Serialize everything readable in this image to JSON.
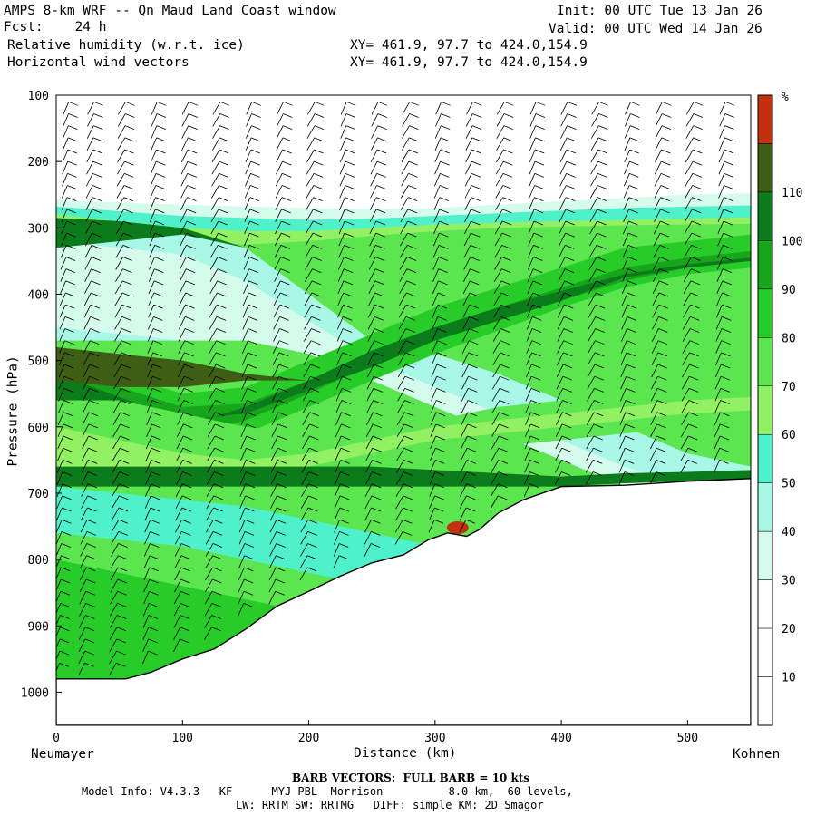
{
  "header": {
    "title": "AMPS 8-km WRF -- Qn Maud Land Coast window",
    "fcst_label": "Fcst:",
    "fcst_value": "24 h",
    "field1": "Relative humidity (w.r.t. ice)",
    "field2": "Horizontal wind vectors",
    "init": "Init: 00 UTC Tue 13 Jan 26",
    "valid": "Valid: 00 UTC Wed 14 Jan 26",
    "xy1": "XY= 461.9, 97.7 to 424.0,154.9",
    "xy2": "XY= 461.9, 97.7 to 424.0,154.9"
  },
  "footer": {
    "barb_note": "BARB VECTORS:  FULL BARB = 10 kts",
    "model_info": "Model Info: V4.3.3   KF      MYJ PBL  Morrison          8.0 km,  60 levels,",
    "model_info2": "LW: RRTM SW: RRTMG   DIFF: simple KM: 2D Smagor"
  },
  "colors": {
    "c10": "#ffffff",
    "c30": "#d4fbec",
    "c40": "#a9f7e6",
    "c50": "#4ff1ca",
    "c60": "#92f063",
    "c70": "#5be54f",
    "c80": "#28cc28",
    "c90": "#17a51b",
    "c100": "#0b7b1b",
    "c110": "#3f5e15",
    "c120": "#c23010"
  },
  "chart_data": {
    "type": "cross-section (filled contour + wind barbs)",
    "title": "Relative humidity (w.r.t. ice) and horizontal wind vectors",
    "xlabel": "Distance (km)",
    "ylabel": "Pressure (hPa)",
    "xlim": [
      0,
      550
    ],
    "ylim": [
      1050,
      100
    ],
    "x_ticks": [
      "0",
      "100",
      "200",
      "300",
      "400",
      "500"
    ],
    "x_tick_values": [
      0,
      100,
      200,
      300,
      400,
      500
    ],
    "y_ticks": [
      "100",
      "200",
      "300",
      "400",
      "500",
      "600",
      "700",
      "800",
      "900",
      "1000"
    ],
    "y_tick_values": [
      100,
      200,
      300,
      400,
      500,
      600,
      700,
      800,
      900,
      1000
    ],
    "x_endpoints": {
      "left": "Neumayer",
      "right": "Kohnen"
    },
    "colorbar_unit": "%",
    "colorbar_levels": [
      "10",
      "20",
      "30",
      "40",
      "50",
      "60",
      "70",
      "80",
      "90",
      "100",
      "110"
    ],
    "colorbar_colors": [
      "#ffffff",
      "#ffffff",
      "#ffffff",
      "#d4fbec",
      "#a9f7e6",
      "#4ff1ca",
      "#92f063",
      "#5be54f",
      "#28cc28",
      "#17a51b",
      "#0b7b1b",
      "#3f5e15",
      "#c23010"
    ],
    "terrain_surface_hpa": [
      [
        0,
        980
      ],
      [
        55,
        980
      ],
      [
        75,
        970
      ],
      [
        100,
        950
      ],
      [
        125,
        935
      ],
      [
        150,
        905
      ],
      [
        175,
        870
      ],
      [
        200,
        848
      ],
      [
        225,
        825
      ],
      [
        250,
        805
      ],
      [
        275,
        793
      ],
      [
        295,
        770
      ],
      [
        310,
        760
      ],
      [
        325,
        765
      ],
      [
        335,
        755
      ],
      [
        350,
        730
      ],
      [
        370,
        710
      ],
      [
        400,
        690
      ],
      [
        450,
        688
      ],
      [
        500,
        682
      ],
      [
        550,
        678
      ]
    ],
    "rh_layers": [
      {
        "range": "80-90",
        "p_top": [
          300,
          330,
          360,
          400,
          430,
          470,
          500
        ],
        "note": "upper moist band rising to the right"
      },
      {
        "range": "90-100",
        "p_mid": [
          510,
          450,
          390,
          340
        ],
        "note": "core of moist band"
      },
      {
        "range": "30-50",
        "region": "0-140 km, 300-480 hPa",
        "note": "dry pocket upper left"
      },
      {
        "range": ">110",
        "region": "~315 km, 750 hPa",
        "note": "supersaturated spot near terrain"
      }
    ],
    "barb_columns_km": [
      10,
      30,
      55,
      80,
      105,
      130,
      155,
      180,
      205,
      230,
      255,
      280,
      305,
      330,
      355,
      380,
      405,
      430,
      455,
      480,
      505,
      530
    ],
    "barb_full_kts": 10
  }
}
